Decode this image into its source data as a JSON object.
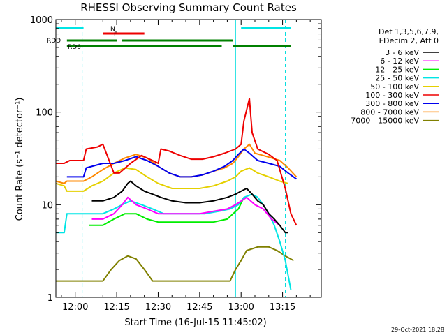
{
  "chart_data": {
    "type": "line",
    "title": "RHESSI Observing Summary Count Rates",
    "xlabel": "Start Time (16-Jul-15 11:45:02)",
    "ylabel": "Count Rate (s⁻¹ detector⁻¹)",
    "yscale": "log",
    "ylim": [
      1,
      1000
    ],
    "xlim_minutes": [
      -7,
      89
    ],
    "y_ticks": [
      "1",
      "10",
      "100",
      "1000"
    ],
    "x_ticks": [
      "12:00",
      "12:15",
      "12:30",
      "12:45",
      "13:00",
      "13:15"
    ],
    "x_tick_minutes": [
      0,
      15,
      30,
      45,
      60,
      75
    ],
    "legend_header": [
      "Det 1,3,5,6,7,9,",
      "FDecim 2, Att 0"
    ],
    "legend_placement": "right",
    "timestamp": "29-Oct-2021 18:28",
    "flag_labels": [
      "N",
      "F",
      "RDD",
      "RD6"
    ],
    "series": [
      {
        "name": "3 - 6 keV",
        "color": "#000000"
      },
      {
        "name": "6 - 12 keV",
        "color": "#ff00ff"
      },
      {
        "name": "12 - 25 keV",
        "color": "#00ee00"
      },
      {
        "name": "25 - 50 keV",
        "color": "#00e5e5"
      },
      {
        "name": "50 - 100 keV",
        "color": "#e5d000"
      },
      {
        "name": "100 - 300 keV",
        "color": "#ee0000"
      },
      {
        "name": "300 - 800 keV",
        "color": "#0000ee"
      },
      {
        "name": "800 - 7000 keV",
        "color": "#ff8800"
      },
      {
        "name": "7000 - 15000 keV",
        "color": "#808000"
      }
    ],
    "series_points": [
      [
        [
          6,
          11
        ],
        [
          10,
          11
        ],
        [
          14,
          12
        ],
        [
          17,
          14
        ],
        [
          19,
          17
        ],
        [
          20,
          18
        ],
        [
          22,
          16
        ],
        [
          25,
          14
        ],
        [
          28,
          13
        ],
        [
          31,
          12
        ],
        [
          35,
          11
        ],
        [
          40,
          10.5
        ],
        [
          45,
          10.5
        ],
        [
          50,
          11
        ],
        [
          55,
          12
        ],
        [
          58,
          13
        ],
        [
          60,
          14
        ],
        [
          62,
          15
        ],
        [
          64,
          13
        ],
        [
          66,
          11
        ],
        [
          68,
          10
        ],
        [
          70,
          8
        ],
        [
          72,
          7
        ],
        [
          74,
          6
        ],
        [
          76,
          5
        ],
        [
          77,
          5
        ]
      ],
      [
        [
          6,
          7
        ],
        [
          10,
          7
        ],
        [
          14,
          8
        ],
        [
          17,
          10
        ],
        [
          19,
          12
        ],
        [
          22,
          10
        ],
        [
          26,
          9
        ],
        [
          30,
          8
        ],
        [
          35,
          8
        ],
        [
          40,
          8
        ],
        [
          45,
          8
        ],
        [
          50,
          8.5
        ],
        [
          55,
          9
        ],
        [
          58,
          10
        ],
        [
          62,
          12
        ],
        [
          65,
          10
        ],
        [
          68,
          9
        ],
        [
          71,
          7
        ],
        [
          74,
          6
        ]
      ],
      [
        [
          5,
          6
        ],
        [
          10,
          6
        ],
        [
          14,
          7
        ],
        [
          18,
          8
        ],
        [
          22,
          8
        ],
        [
          26,
          7
        ],
        [
          30,
          6.5
        ],
        [
          35,
          6.5
        ],
        [
          40,
          6.5
        ],
        [
          45,
          6.5
        ],
        [
          50,
          6.5
        ],
        [
          55,
          7
        ],
        [
          59,
          9
        ],
        [
          61,
          12
        ]
      ],
      [
        [
          -7,
          5
        ],
        [
          -4,
          5
        ],
        [
          -3,
          8
        ],
        [
          3,
          8
        ],
        [
          6,
          8
        ],
        [
          10,
          8
        ],
        [
          14,
          9
        ],
        [
          17,
          10
        ],
        [
          20,
          11
        ],
        [
          24,
          10
        ],
        [
          28,
          9
        ],
        [
          32,
          8
        ],
        [
          37,
          8
        ],
        [
          42,
          8
        ],
        [
          47,
          8
        ],
        [
          52,
          8.5
        ],
        [
          56,
          9
        ],
        [
          59,
          10
        ],
        [
          61,
          12
        ],
        [
          64,
          13
        ],
        [
          66,
          12
        ],
        [
          68,
          10
        ],
        [
          70,
          8
        ],
        [
          72,
          6
        ],
        [
          74,
          4
        ],
        [
          76,
          2.5
        ],
        [
          78,
          1.2
        ]
      ],
      [
        [
          -7,
          17
        ],
        [
          -4,
          16
        ],
        [
          -3,
          14
        ],
        [
          3,
          14
        ],
        [
          6,
          16
        ],
        [
          10,
          18
        ],
        [
          14,
          22
        ],
        [
          18,
          25
        ],
        [
          22,
          24
        ],
        [
          26,
          20
        ],
        [
          30,
          17
        ],
        [
          35,
          15
        ],
        [
          40,
          15
        ],
        [
          45,
          15
        ],
        [
          50,
          16
        ],
        [
          55,
          18
        ],
        [
          58,
          20
        ],
        [
          60,
          23
        ],
        [
          63,
          25
        ],
        [
          66,
          22
        ],
        [
          70,
          20
        ],
        [
          74,
          18
        ],
        [
          77,
          17
        ]
      ],
      [
        [
          -7,
          28
        ],
        [
          -4,
          28
        ],
        [
          -2,
          30
        ],
        [
          3,
          30
        ],
        [
          4,
          40
        ],
        [
          8,
          42
        ],
        [
          10,
          45
        ],
        [
          14,
          22
        ],
        [
          16,
          22
        ],
        [
          20,
          28
        ],
        [
          24,
          34
        ],
        [
          28,
          30
        ],
        [
          30,
          28
        ],
        [
          31,
          40
        ],
        [
          34,
          38
        ],
        [
          38,
          34
        ],
        [
          42,
          31
        ],
        [
          46,
          31
        ],
        [
          50,
          33
        ],
        [
          54,
          36
        ],
        [
          58,
          40
        ],
        [
          60,
          45
        ],
        [
          61,
          80
        ],
        [
          63,
          140
        ],
        [
          64,
          60
        ],
        [
          66,
          40
        ],
        [
          70,
          35
        ],
        [
          73,
          30
        ],
        [
          76,
          15
        ],
        [
          78,
          8
        ],
        [
          80,
          6
        ]
      ],
      [
        [
          -3,
          20
        ],
        [
          3,
          20
        ],
        [
          4,
          25
        ],
        [
          10,
          28
        ],
        [
          14,
          28
        ],
        [
          18,
          30
        ],
        [
          22,
          33
        ],
        [
          26,
          30
        ],
        [
          30,
          26
        ],
        [
          34,
          22
        ],
        [
          38,
          20
        ],
        [
          42,
          20
        ],
        [
          46,
          21
        ],
        [
          50,
          23
        ],
        [
          54,
          26
        ],
        [
          57,
          30
        ],
        [
          59,
          35
        ],
        [
          61,
          40
        ],
        [
          63,
          36
        ],
        [
          66,
          30
        ],
        [
          70,
          28
        ],
        [
          74,
          26
        ],
        [
          77,
          22
        ],
        [
          80,
          19
        ]
      ],
      [
        [
          -7,
          18
        ],
        [
          -4,
          17
        ],
        [
          -3,
          18
        ],
        [
          3,
          18
        ],
        [
          6,
          20
        ],
        [
          10,
          24
        ],
        [
          14,
          28
        ],
        [
          18,
          32
        ],
        [
          22,
          35
        ],
        [
          26,
          32
        ],
        [
          30,
          26
        ],
        [
          34,
          22
        ],
        [
          38,
          20
        ],
        [
          42,
          20
        ],
        [
          46,
          21
        ],
        [
          50,
          23
        ],
        [
          54,
          25
        ],
        [
          57,
          28
        ],
        [
          59,
          33
        ],
        [
          61,
          40
        ],
        [
          63,
          45
        ],
        [
          65,
          36
        ],
        [
          68,
          34
        ],
        [
          71,
          32
        ],
        [
          74,
          30
        ],
        [
          77,
          25
        ],
        [
          80,
          20
        ]
      ],
      [
        [
          -7,
          1.5
        ],
        [
          -3,
          1.5
        ],
        [
          0,
          1.5
        ],
        [
          4,
          1.5
        ],
        [
          7,
          1.5
        ],
        [
          10,
          1.5
        ],
        [
          13,
          2
        ],
        [
          16,
          2.5
        ],
        [
          19,
          2.8
        ],
        [
          22,
          2.6
        ],
        [
          25,
          2
        ],
        [
          28,
          1.5
        ],
        [
          32,
          1.5
        ],
        [
          36,
          1.5
        ],
        [
          40,
          1.5
        ],
        [
          44,
          1.5
        ],
        [
          48,
          1.5
        ],
        [
          52,
          1.5
        ],
        [
          56,
          1.5
        ],
        [
          58,
          2
        ],
        [
          60,
          2.5
        ],
        [
          62,
          3.2
        ],
        [
          66,
          3.5
        ],
        [
          70,
          3.5
        ],
        [
          73,
          3.2
        ],
        [
          76,
          2.8
        ],
        [
          79,
          2.5
        ]
      ]
    ],
    "flags": {
      "N": [
        [
          -7,
          3,
          12
        ],
        [
          60,
          78,
          12
        ]
      ],
      "F": [
        [
          10,
          25,
          11
        ]
      ],
      "RDD": [
        [
          -3,
          15,
          9
        ],
        [
          17,
          57,
          9
        ]
      ],
      "RD6": [
        [
          -3,
          53,
          7
        ],
        [
          57,
          78,
          7
        ]
      ]
    },
    "vlines_minutes": [
      2.5,
      58,
      76
    ]
  }
}
